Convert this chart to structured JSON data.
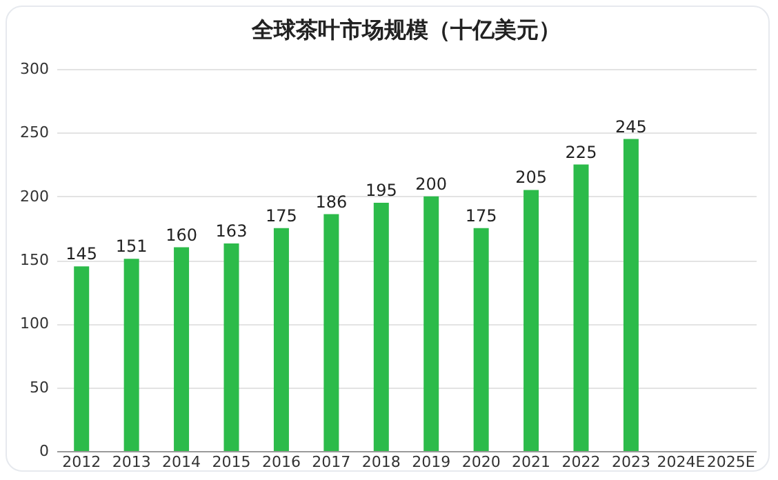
{
  "chart_data": {
    "type": "bar",
    "title": "全球茶叶市场规模（十亿美元）",
    "categories": [
      "2012",
      "2013",
      "2014",
      "2015",
      "2016",
      "2017",
      "2018",
      "2019",
      "2020",
      "2021",
      "2022",
      "2023",
      "2024E",
      "2025E"
    ],
    "values": [
      145,
      151,
      160,
      163,
      175,
      186,
      195,
      200,
      175,
      205,
      225,
      245,
      null,
      null
    ],
    "color": "#2cbb4a",
    "ylim": [
      0,
      300
    ],
    "yticks": [
      0,
      50,
      100,
      150,
      200,
      250,
      300
    ],
    "grid": "y",
    "data_labels": true
  }
}
